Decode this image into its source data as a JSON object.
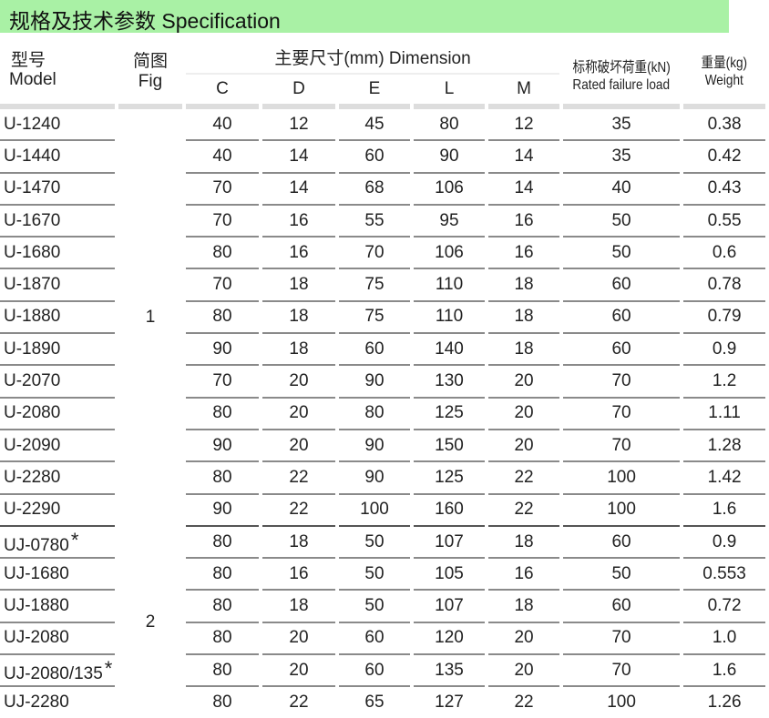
{
  "title": "规格及技术参数  Specification",
  "headers": {
    "model_cn": "型号",
    "model_en": "Model",
    "fig_cn": "简图",
    "fig_en": "Fig",
    "dimension": "主要尺寸(mm)  Dimension",
    "dims": [
      "C",
      "D",
      "E",
      "L",
      "M"
    ],
    "load_cn": "标称破坏荷重(kN)",
    "load_en": "Rated failure load",
    "weight_cn": "重量(kg)",
    "weight_en": "Weight"
  },
  "groups": [
    {
      "fig": "1",
      "rows": [
        {
          "model": "U-1240",
          "C": "40",
          "D": "12",
          "E": "45",
          "L": "80",
          "M": "12",
          "load": "35",
          "weight": "0.38"
        },
        {
          "model": "U-1440",
          "C": "40",
          "D": "14",
          "E": "60",
          "L": "90",
          "M": "14",
          "load": "35",
          "weight": "0.42"
        },
        {
          "model": "U-1470",
          "C": "70",
          "D": "14",
          "E": "68",
          "L": "106",
          "M": "14",
          "load": "40",
          "weight": "0.43"
        },
        {
          "model": "U-1670",
          "C": "70",
          "D": "16",
          "E": "55",
          "L": "95",
          "M": "16",
          "load": "50",
          "weight": "0.55"
        },
        {
          "model": "U-1680",
          "C": "80",
          "D": "16",
          "E": "70",
          "L": "106",
          "M": "16",
          "load": "50",
          "weight": "0.6"
        },
        {
          "model": "U-1870",
          "C": "70",
          "D": "18",
          "E": "75",
          "L": "110",
          "M": "18",
          "load": "60",
          "weight": "0.78"
        },
        {
          "model": "U-1880",
          "C": "80",
          "D": "18",
          "E": "75",
          "L": "110",
          "M": "18",
          "load": "60",
          "weight": "0.79"
        },
        {
          "model": "U-1890",
          "C": "90",
          "D": "18",
          "E": "60",
          "L": "140",
          "M": "18",
          "load": "60",
          "weight": "0.9"
        },
        {
          "model": "U-2070",
          "C": "70",
          "D": "20",
          "E": "90",
          "L": "130",
          "M": "20",
          "load": "70",
          "weight": "1.2"
        },
        {
          "model": "U-2080",
          "C": "80",
          "D": "20",
          "E": "80",
          "L": "125",
          "M": "20",
          "load": "70",
          "weight": "1.11"
        },
        {
          "model": "U-2090",
          "C": "90",
          "D": "20",
          "E": "90",
          "L": "150",
          "M": "20",
          "load": "70",
          "weight": "1.28"
        },
        {
          "model": "U-2280",
          "C": "80",
          "D": "22",
          "E": "90",
          "L": "125",
          "M": "22",
          "load": "100",
          "weight": "1.42"
        },
        {
          "model": "U-2290",
          "C": "90",
          "D": "22",
          "E": "100",
          "L": "160",
          "M": "22",
          "load": "100",
          "weight": "1.6"
        }
      ]
    },
    {
      "fig": "2",
      "rows": [
        {
          "model": "UJ-0780",
          "mark": "*",
          "C": "80",
          "D": "18",
          "E": "50",
          "L": "107",
          "M": "18",
          "load": "60",
          "weight": "0.9"
        },
        {
          "model": "UJ-1680",
          "C": "80",
          "D": "16",
          "E": "50",
          "L": "105",
          "M": "16",
          "load": "50",
          "weight": "0.553"
        },
        {
          "model": "UJ-1880",
          "C": "80",
          "D": "18",
          "E": "50",
          "L": "107",
          "M": "18",
          "load": "60",
          "weight": "0.72"
        },
        {
          "model": "UJ-2080",
          "C": "80",
          "D": "20",
          "E": "60",
          "L": "120",
          "M": "20",
          "load": "70",
          "weight": "1.0"
        },
        {
          "model": "UJ-2080/135",
          "mark": "*",
          "C": "80",
          "D": "20",
          "E": "60",
          "L": "135",
          "M": "20",
          "load": "70",
          "weight": "1.6"
        },
        {
          "model": "UJ-2280",
          "C": "80",
          "D": "22",
          "E": "65",
          "L": "127",
          "M": "22",
          "load": "100",
          "weight": "1.26"
        }
      ]
    }
  ]
}
